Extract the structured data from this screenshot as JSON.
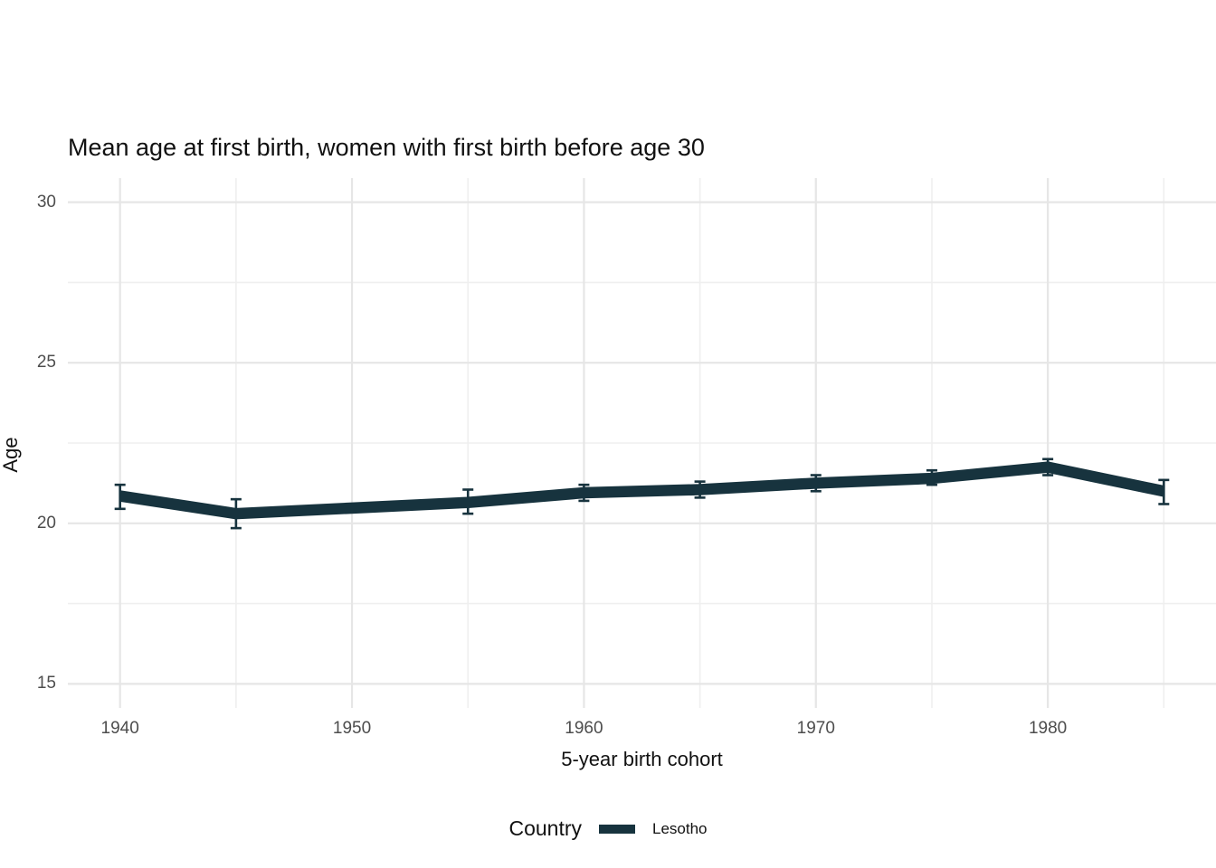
{
  "title": "Mean age at first birth, women with first birth before age 30",
  "axes": {
    "x": {
      "label": "5-year birth cohort",
      "ticks": [
        1940,
        1950,
        1960,
        1970,
        1980
      ],
      "minor_ticks": [
        1945,
        1955,
        1965,
        1975,
        1985
      ],
      "range": [
        1937.75,
        1987.25
      ]
    },
    "y": {
      "label": "Age",
      "ticks": [
        15,
        20,
        25,
        30
      ],
      "minor_ticks": [
        17.5,
        22.5,
        27.5
      ],
      "range": [
        14.25,
        30.75
      ]
    }
  },
  "legend": {
    "title": "Country",
    "items": [
      {
        "label": "Lesotho",
        "color": "#17333e"
      }
    ]
  },
  "colors": {
    "line": "#17333e",
    "grid_major": "#e6e6e6",
    "grid_minor": "#efefef",
    "tick_text": "#4d4d4d",
    "title_text": "#111111",
    "background": "#ffffff"
  },
  "chart_data": {
    "type": "line",
    "title": "Mean age at first birth, women with first birth before age 30",
    "xlabel": "5-year birth cohort",
    "ylabel": "Age",
    "xlim": [
      1937.75,
      1987.25
    ],
    "ylim": [
      14.25,
      30.75
    ],
    "grid": true,
    "legend_position": "bottom",
    "error_bars": true,
    "series": [
      {
        "name": "Lesotho",
        "color": "#17333e",
        "x": [
          1940,
          1945,
          1955,
          1960,
          1965,
          1970,
          1975,
          1980,
          1985
        ],
        "y": [
          20.85,
          20.3,
          20.65,
          20.95,
          21.05,
          21.25,
          21.4,
          21.75,
          21.0
        ],
        "ci_low": [
          20.45,
          19.85,
          20.3,
          20.7,
          20.8,
          21.0,
          21.2,
          21.5,
          20.6
        ],
        "ci_high": [
          21.2,
          20.75,
          21.05,
          21.2,
          21.3,
          21.5,
          21.65,
          22.0,
          21.35
        ]
      }
    ]
  }
}
